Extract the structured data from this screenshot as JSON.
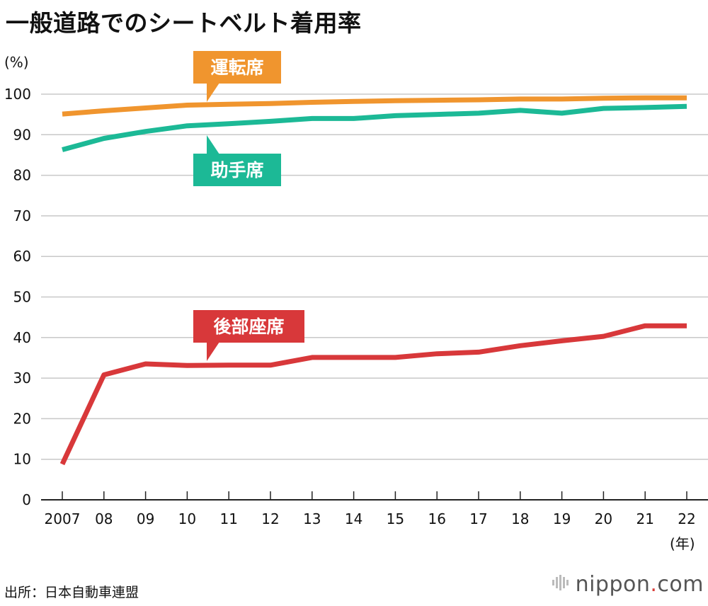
{
  "header": {
    "title": "一般道路でのシートベルト着用率"
  },
  "footer": {
    "source": "出所：日本自動車連盟",
    "logo_text": "nippon",
    "logo_dot": ".",
    "logo_tld": "com"
  },
  "colors": {
    "driver": "#f0952e",
    "passenger": "#1cb996",
    "rear": "#d8383a",
    "grid": "#c8c8c8"
  },
  "chart_data": {
    "type": "line",
    "title": "一般道路でのシートベルト着用率",
    "ylabel": "(%)",
    "xlabel": "(年)",
    "ylim": [
      0,
      100
    ],
    "yticks": [
      0,
      10,
      20,
      30,
      40,
      50,
      60,
      70,
      80,
      90,
      100
    ],
    "categories": [
      "2007",
      "08",
      "09",
      "10",
      "11",
      "12",
      "13",
      "14",
      "15",
      "16",
      "17",
      "18",
      "19",
      "20",
      "21",
      "22"
    ],
    "grid": true,
    "series": [
      {
        "name": "運転席",
        "key": "driver",
        "values": [
          95.1,
          95.9,
          96.6,
          97.3,
          97.5,
          97.7,
          98.0,
          98.2,
          98.4,
          98.5,
          98.6,
          98.8,
          98.8,
          99.0,
          99.1,
          99.1
        ]
      },
      {
        "name": "助手席",
        "key": "passenger",
        "values": [
          86.3,
          89.1,
          90.8,
          92.2,
          92.7,
          93.3,
          94.0,
          94.0,
          94.7,
          95.0,
          95.3,
          96.0,
          95.3,
          96.5,
          96.7,
          97.0
        ]
      },
      {
        "name": "後部座席",
        "key": "rear",
        "values": [
          8.8,
          30.8,
          33.5,
          33.1,
          33.2,
          33.2,
          35.1,
          35.1,
          35.1,
          36.0,
          36.4,
          38.0,
          39.2,
          40.3,
          42.9,
          42.9
        ]
      }
    ]
  }
}
